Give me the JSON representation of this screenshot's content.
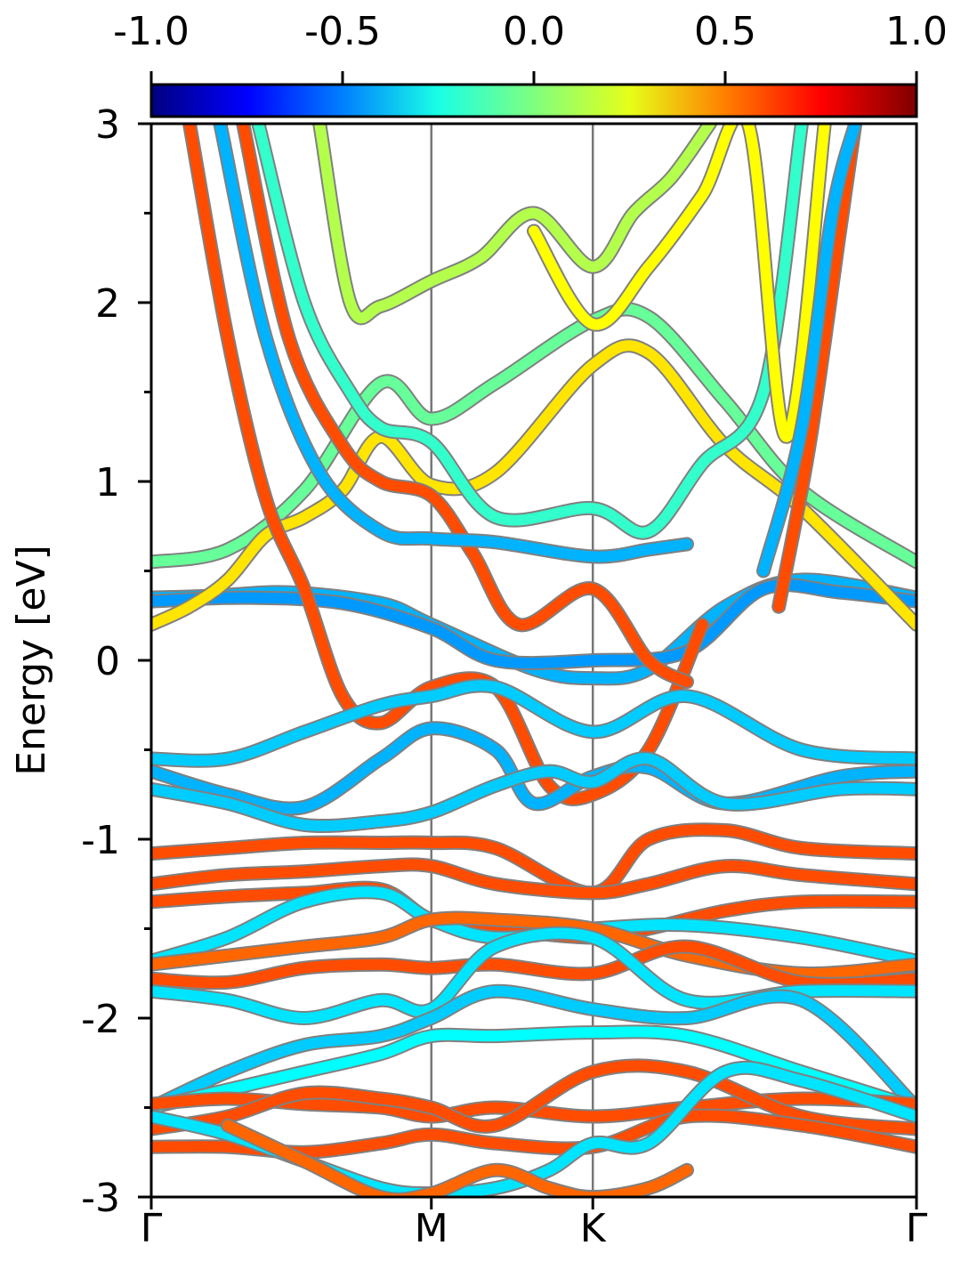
{
  "chart_data": {
    "type": "line",
    "ylabel": "Energy [eV]",
    "ylim": [
      -3,
      3
    ],
    "yticks": [
      3,
      2,
      1,
      0,
      -1,
      -2,
      -3
    ],
    "ytick_labels": [
      "3",
      "2",
      "1",
      "0",
      "-1",
      "-2",
      "-3"
    ],
    "xlim": [
      0,
      1
    ],
    "kpoints": [
      {
        "label": "Γ",
        "x": 0
      },
      {
        "label": "M",
        "x": 0.366
      },
      {
        "label": "K",
        "x": 0.577
      },
      {
        "label": "Γ",
        "x": 1
      }
    ],
    "colorbar": {
      "range": [
        -1.0,
        1.0
      ],
      "tick_values": [
        -1.0,
        -0.5,
        0.0,
        0.5,
        1.0
      ],
      "tick_labels": [
        "-1.0",
        "-0.5",
        "0.0",
        "0.5",
        "1.0"
      ],
      "colormap": "jet",
      "colors": [
        "#00007f",
        "#0000ff",
        "#007fff",
        "#19ffe5",
        "#7fff7f",
        "#e5ff19",
        "#ff7f00",
        "#ff0000",
        "#7f0000"
      ]
    },
    "series": [
      {
        "x": [
          0,
          0.1,
          0.2,
          0.3,
          0.366,
          0.45,
          0.577,
          0.65,
          0.75,
          0.85,
          1
        ],
        "values": [
          0.55,
          0.62,
          0.95,
          1.55,
          1.35,
          1.55,
          1.9,
          1.92,
          1.45,
          0.95,
          0.55
        ],
        "c": -0.05
      },
      {
        "x": [
          0,
          0.08,
          0.18,
          0.3,
          0.366,
          0.5,
          0.577,
          0.65,
          0.75,
          0.85,
          1
        ],
        "values": [
          0.35,
          0.36,
          0.38,
          0.32,
          0.2,
          -0.05,
          -0.1,
          -0.05,
          0.3,
          0.45,
          0.35
        ],
        "c": -0.4
      },
      {
        "x": [
          0,
          0.12,
          0.25,
          0.366,
          0.45,
          0.577,
          0.7,
          0.8,
          0.9,
          1
        ],
        "values": [
          0.33,
          0.35,
          0.32,
          0.18,
          0.0,
          0.0,
          0.05,
          0.4,
          0.38,
          0.33
        ],
        "c": -0.45
      },
      {
        "x": [
          0,
          0.05,
          0.1,
          0.15,
          0.2,
          0.25,
          0.3,
          0.366,
          0.45,
          0.577,
          0.65,
          0.75,
          0.85,
          1
        ],
        "values": [
          0.2,
          0.3,
          0.45,
          0.7,
          0.8,
          0.95,
          1.25,
          0.98,
          1.05,
          1.65,
          1.72,
          1.2,
          0.85,
          0.2
        ],
        "c": 0.3
      },
      {
        "x": [
          0.05,
          0.1,
          0.15,
          0.2,
          0.25,
          0.3,
          0.366,
          0.45,
          0.52,
          0.577,
          0.65,
          0.72
        ],
        "values": [
          3.0,
          1.8,
          0.9,
          0.4,
          -0.2,
          -0.35,
          -0.15,
          -0.15,
          -0.7,
          -0.75,
          -0.5,
          0.2
        ],
        "c": 0.6
      },
      {
        "x": [
          0.12,
          0.18,
          0.25,
          0.3,
          0.366,
          0.42,
          0.48,
          0.577,
          0.65,
          0.7
        ],
        "values": [
          3.0,
          1.8,
          1.2,
          1.0,
          0.92,
          0.6,
          0.2,
          0.4,
          0.0,
          -0.12
        ],
        "c": 0.6
      },
      {
        "x": [
          0.09,
          0.15,
          0.22,
          0.3,
          0.366,
          0.45,
          0.577,
          0.65,
          0.7
        ],
        "values": [
          3.0,
          1.8,
          1.05,
          0.72,
          0.68,
          0.66,
          0.58,
          0.62,
          0.65
        ],
        "c": -0.4
      },
      {
        "x": [
          0.14,
          0.2,
          0.26,
          0.3,
          0.366,
          0.45,
          0.577,
          0.65,
          0.72,
          0.8,
          0.85
        ],
        "values": [
          3.0,
          2.0,
          1.5,
          1.3,
          1.22,
          0.8,
          0.85,
          0.72,
          1.1,
          1.5,
          3.0
        ],
        "c": -0.15
      },
      {
        "x": [
          0.22,
          0.26,
          0.3,
          0.366,
          0.43,
          0.5,
          0.577,
          0.63,
          0.68,
          0.73
        ],
        "values": [
          3.0,
          2.0,
          1.98,
          2.12,
          2.25,
          2.5,
          2.2,
          2.5,
          2.7,
          3.0
        ],
        "c": 0.1
      },
      {
        "x": [
          0.5,
          0.577,
          0.65,
          0.72,
          0.78,
          0.83,
          0.88
        ],
        "values": [
          2.4,
          1.88,
          2.2,
          2.6,
          3.0,
          1.25,
          3.0
        ],
        "c": 0.25
      },
      {
        "x": [
          0.82,
          0.86,
          0.9,
          0.92
        ],
        "values": [
          0.3,
          1.2,
          2.4,
          3.0
        ],
        "c": 0.6
      },
      {
        "x": [
          0.8,
          0.85,
          0.89,
          0.92
        ],
        "values": [
          0.5,
          1.3,
          2.5,
          3.0
        ],
        "c": -0.4
      },
      {
        "x": [
          0,
          0.1,
          0.2,
          0.3,
          0.366,
          0.45,
          0.577,
          0.7,
          0.85,
          1
        ],
        "values": [
          -0.55,
          -0.55,
          -0.4,
          -0.25,
          -0.2,
          -0.15,
          -0.4,
          -0.2,
          -0.5,
          -0.55
        ],
        "c": -0.35
      },
      {
        "x": [
          0,
          0.1,
          0.2,
          0.3,
          0.366,
          0.45,
          0.5,
          0.577,
          0.65,
          0.75,
          0.9,
          1
        ],
        "values": [
          -0.62,
          -0.75,
          -0.82,
          -0.55,
          -0.38,
          -0.5,
          -0.8,
          -0.65,
          -0.6,
          -0.8,
          -0.65,
          -0.62
        ],
        "c": -0.4
      },
      {
        "x": [
          0,
          0.1,
          0.2,
          0.3,
          0.366,
          0.45,
          0.52,
          0.577,
          0.65,
          0.75,
          0.9,
          1
        ],
        "values": [
          -0.72,
          -0.8,
          -0.92,
          -0.9,
          -0.85,
          -0.7,
          -0.62,
          -0.68,
          -0.55,
          -0.8,
          -0.72,
          -0.72
        ],
        "c": -0.35
      },
      {
        "x": [
          0,
          0.1,
          0.2,
          0.3,
          0.366,
          0.45,
          0.577,
          0.65,
          0.75,
          0.85,
          1
        ],
        "values": [
          -1.08,
          -1.05,
          -1.02,
          -1.02,
          -1.02,
          -1.05,
          -1.3,
          -1.0,
          -0.95,
          -1.05,
          -1.08
        ],
        "c": 0.6
      },
      {
        "x": [
          0,
          0.1,
          0.2,
          0.3,
          0.366,
          0.45,
          0.577,
          0.65,
          0.75,
          0.85,
          1
        ],
        "values": [
          -1.25,
          -1.2,
          -1.18,
          -1.15,
          -1.15,
          -1.25,
          -1.3,
          -1.25,
          -1.15,
          -1.2,
          -1.25
        ],
        "c": 0.6
      },
      {
        "x": [
          0,
          0.1,
          0.2,
          0.3,
          0.366,
          0.45,
          0.577,
          0.65,
          0.75,
          0.85,
          1
        ],
        "values": [
          -1.35,
          -1.32,
          -1.3,
          -1.28,
          -1.45,
          -1.5,
          -1.55,
          -1.5,
          -1.4,
          -1.35,
          -1.35
        ],
        "c": 0.6
      },
      {
        "x": [
          0,
          0.1,
          0.2,
          0.3,
          0.366,
          0.45,
          0.577,
          0.7,
          0.85,
          1
        ],
        "values": [
          -1.68,
          -1.55,
          -1.35,
          -1.3,
          -1.45,
          -1.55,
          -1.5,
          -1.48,
          -1.55,
          -1.68
        ],
        "c": -0.3
      },
      {
        "x": [
          0,
          0.1,
          0.2,
          0.3,
          0.366,
          0.45,
          0.577,
          0.7,
          0.85,
          1
        ],
        "values": [
          -1.7,
          -1.65,
          -1.6,
          -1.55,
          -1.45,
          -1.45,
          -1.5,
          -1.65,
          -1.75,
          -1.7
        ],
        "c": 0.55
      },
      {
        "x": [
          0,
          0.1,
          0.2,
          0.3,
          0.366,
          0.45,
          0.577,
          0.7,
          0.85,
          1
        ],
        "values": [
          -1.78,
          -1.8,
          -1.72,
          -1.7,
          -1.72,
          -1.7,
          -1.75,
          -1.6,
          -1.8,
          -1.78
        ],
        "c": 0.6
      },
      {
        "x": [
          0,
          0.1,
          0.2,
          0.3,
          0.366,
          0.45,
          0.577,
          0.7,
          0.85,
          1
        ],
        "values": [
          -1.85,
          -1.9,
          -2.0,
          -1.9,
          -1.95,
          -1.6,
          -1.55,
          -1.9,
          -1.85,
          -1.85
        ],
        "c": -0.3
      },
      {
        "x": [
          0,
          0.1,
          0.2,
          0.3,
          0.366,
          0.45,
          0.577,
          0.7,
          0.85,
          1
        ],
        "values": [
          -2.5,
          -2.3,
          -2.15,
          -2.1,
          -2.0,
          -1.85,
          -1.95,
          -2.0,
          -1.9,
          -2.5
        ],
        "c": -0.35
      },
      {
        "x": [
          0,
          0.1,
          0.2,
          0.3,
          0.366,
          0.45,
          0.577,
          0.7,
          0.85,
          1
        ],
        "values": [
          -2.5,
          -2.4,
          -2.3,
          -2.2,
          -2.1,
          -2.1,
          -2.08,
          -2.1,
          -2.3,
          -2.5
        ],
        "c": -0.25
      },
      {
        "x": [
          0,
          0.1,
          0.2,
          0.3,
          0.366,
          0.45,
          0.577,
          0.7,
          0.85,
          1
        ],
        "values": [
          -2.48,
          -2.45,
          -2.48,
          -2.5,
          -2.55,
          -2.5,
          -2.55,
          -2.5,
          -2.45,
          -2.48
        ],
        "c": 0.6
      },
      {
        "x": [
          0,
          0.1,
          0.2,
          0.3,
          0.366,
          0.45,
          0.577,
          0.7,
          0.85,
          1
        ],
        "values": [
          -2.62,
          -2.55,
          -2.42,
          -2.45,
          -2.5,
          -2.6,
          -2.3,
          -2.3,
          -2.55,
          -2.62
        ],
        "c": 0.6
      },
      {
        "x": [
          0,
          0.1,
          0.2,
          0.3,
          0.366,
          0.45,
          0.577,
          0.7,
          0.85,
          1
        ],
        "values": [
          -2.72,
          -2.72,
          -2.75,
          -2.7,
          -2.65,
          -2.7,
          -2.72,
          -2.55,
          -2.6,
          -2.72
        ],
        "c": 0.6
      },
      {
        "x": [
          0,
          0.1,
          0.2,
          0.3,
          0.366,
          0.45,
          0.52,
          0.577,
          0.65,
          0.75,
          0.85,
          1
        ],
        "values": [
          -2.55,
          -2.65,
          -2.8,
          -2.95,
          -2.98,
          -2.95,
          -2.85,
          -2.7,
          -2.7,
          -2.3,
          -2.35,
          -2.55
        ],
        "c": -0.3
      },
      {
        "x": [
          0.1,
          0.2,
          0.3,
          0.366,
          0.45,
          0.52,
          0.577,
          0.65,
          0.7
        ],
        "values": [
          -2.6,
          -2.8,
          -3.0,
          -2.98,
          -2.85,
          -2.95,
          -3.0,
          -2.95,
          -2.85
        ],
        "c": 0.55
      }
    ]
  }
}
